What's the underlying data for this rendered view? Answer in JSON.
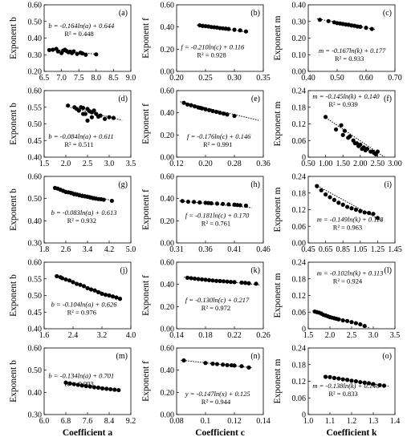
{
  "chart_data": [
    {
      "panel": "(a)",
      "type": "scatter",
      "ylabel": "Exponent b",
      "xlabel": "",
      "xlim": [
        6.5,
        9.0
      ],
      "xticks": [
        "6.5",
        "7.0",
        "7.5",
        "8.0",
        "8.5",
        "9.0"
      ],
      "ylim": [
        0.2,
        0.6
      ],
      "yticks": [
        "0.20",
        "0.30",
        "0.40",
        "0.50",
        "0.60"
      ],
      "equation": "b = -0.164ln(a) + 0.644",
      "r2": "R² = 0.448",
      "x": [
        6.65,
        6.75,
        6.85,
        6.9,
        7.0,
        7.05,
        7.1,
        7.15,
        7.2,
        7.25,
        7.3,
        7.35,
        7.45,
        7.55,
        7.6,
        7.7,
        8.0
      ],
      "y": [
        0.328,
        0.33,
        0.335,
        0.32,
        0.31,
        0.325,
        0.33,
        0.322,
        0.315,
        0.318,
        0.31,
        0.32,
        0.305,
        0.312,
        0.308,
        0.3,
        0.302
      ],
      "trend": {
        "x": [
          6.6,
          8.05
        ],
        "y": [
          0.335,
          0.302
        ]
      }
    },
    {
      "panel": "(b)",
      "type": "scatter",
      "ylabel": "Exponent f",
      "xlabel": "",
      "xlim": [
        0.2,
        0.35
      ],
      "xticks": [
        "0.20",
        "0.25",
        "0.30",
        "0.35"
      ],
      "ylim": [
        0.0,
        0.6
      ],
      "yticks": [
        "0.00",
        "0.20",
        "0.40",
        "0.60"
      ],
      "equation": "f = -0.210ln(c) + 0.116",
      "r2": "R² = 0.928",
      "x": [
        0.24,
        0.245,
        0.25,
        0.255,
        0.26,
        0.265,
        0.27,
        0.275,
        0.28,
        0.285,
        0.29,
        0.3,
        0.31,
        0.32
      ],
      "y": [
        0.415,
        0.41,
        0.408,
        0.405,
        0.4,
        0.398,
        0.395,
        0.39,
        0.388,
        0.385,
        0.382,
        0.375,
        0.37,
        0.36
      ],
      "trend": {
        "x": [
          0.235,
          0.325
        ],
        "y": [
          0.418,
          0.352
        ]
      }
    },
    {
      "panel": "(c)",
      "type": "scatter",
      "ylabel": "Exponent m",
      "xlabel": "",
      "xlim": [
        0.4,
        0.7
      ],
      "xticks": [
        "0.40",
        "0.50",
        "0.60",
        "0.70"
      ],
      "ylim": [
        0.0,
        0.4
      ],
      "yticks": [
        "0.00",
        "0.10",
        "0.20",
        "0.30",
        "0.40"
      ],
      "equation": "m = -0.167ln(k) + 0.177",
      "r2": "R² = 0.933",
      "x": [
        0.44,
        0.47,
        0.49,
        0.5,
        0.51,
        0.52,
        0.53,
        0.54,
        0.55,
        0.56,
        0.57,
        0.58,
        0.6,
        0.62
      ],
      "y": [
        0.31,
        0.302,
        0.295,
        0.29,
        0.288,
        0.285,
        0.282,
        0.28,
        0.276,
        0.274,
        0.27,
        0.268,
        0.262,
        0.255
      ],
      "trend": {
        "x": [
          0.43,
          0.63
        ],
        "y": [
          0.316,
          0.253
        ]
      }
    },
    {
      "panel": "(d)",
      "type": "scatter",
      "ylabel": "Exponent b",
      "xlabel": "",
      "xlim": [
        1.5,
        3.5
      ],
      "xticks": [
        "1.5",
        "2.0",
        "2.5",
        "3.0",
        "3.5"
      ],
      "ylim": [
        0.4,
        0.6
      ],
      "yticks": [
        "0.40",
        "0.45",
        "0.50",
        "0.55",
        "0.60"
      ],
      "equation": "b = -0.084ln(a) + 0.611",
      "r2": "R² = 0.511",
      "x": [
        2.05,
        2.2,
        2.25,
        2.3,
        2.35,
        2.4,
        2.45,
        2.5,
        2.55,
        2.6,
        2.65,
        2.7,
        2.75,
        2.8,
        2.9,
        3.0,
        3.1,
        2.4,
        2.5,
        2.6
      ],
      "y": [
        0.555,
        0.55,
        0.545,
        0.54,
        0.55,
        0.548,
        0.53,
        0.545,
        0.538,
        0.52,
        0.54,
        0.53,
        0.522,
        0.525,
        0.515,
        0.52,
        0.518,
        0.53,
        0.51,
        0.535
      ],
      "trend": {
        "x": [
          2.0,
          3.3
        ],
        "y": [
          0.553,
          0.511
        ]
      }
    },
    {
      "panel": "(e)",
      "type": "scatter",
      "ylabel": "Exponent f",
      "xlabel": "",
      "xlim": [
        0.12,
        0.36
      ],
      "xticks": [
        "0.12",
        "0.20",
        "0.28",
        "0.36"
      ],
      "ylim": [
        0.0,
        0.6
      ],
      "yticks": [
        "0.00",
        "0.20",
        "0.40",
        "0.60"
      ],
      "equation": "f = -0.176ln(c) + 0.146",
      "r2": "R² = 0.991",
      "x": [
        0.14,
        0.15,
        0.16,
        0.17,
        0.18,
        0.185,
        0.19,
        0.2,
        0.21,
        0.22,
        0.23,
        0.24,
        0.25,
        0.26,
        0.28
      ],
      "y": [
        0.49,
        0.475,
        0.468,
        0.458,
        0.448,
        0.445,
        0.44,
        0.432,
        0.424,
        0.415,
        0.408,
        0.4,
        0.392,
        0.385,
        0.372
      ],
      "trend": {
        "x": [
          0.13,
          0.35
        ],
        "y": [
          0.5,
          0.33
        ]
      }
    },
    {
      "panel": "(f)",
      "type": "scatter",
      "ylabel": "Exponent m",
      "xlabel": "",
      "xlim": [
        0.5,
        3.0
      ],
      "xticks": [
        "0.50",
        "1.00",
        "1.50",
        "2.00",
        "2.50",
        "3.00"
      ],
      "ylim": [
        0,
        0.24
      ],
      "yticks": [
        "0",
        "0.06",
        "0.12",
        "0.18",
        "0.24"
      ],
      "equation": "m = -0.145ln(k) + 0.140",
      "r2": "R² = 0.939",
      "x": [
        1.0,
        1.3,
        1.45,
        1.5,
        1.55,
        1.65,
        1.7,
        1.8,
        1.85,
        1.9,
        1.95,
        2.0,
        2.05,
        2.1,
        2.15,
        2.2,
        2.3,
        2.35,
        2.4,
        2.45,
        2.5
      ],
      "y": [
        0.145,
        0.1,
        0.115,
        0.08,
        0.095,
        0.07,
        0.075,
        0.06,
        0.05,
        0.05,
        0.04,
        0.045,
        0.03,
        0.035,
        0.025,
        0.03,
        0.02,
        0.02,
        0.015,
        0.01,
        0.02
      ],
      "trend": {
        "x": [
          0.95,
          2.7
        ],
        "y": [
          0.147,
          0.0
        ]
      }
    },
    {
      "panel": "(g)",
      "type": "scatter",
      "ylabel": "Exponent b",
      "xlabel": "",
      "xlim": [
        1.8,
        5.0
      ],
      "xticks": [
        "1.8",
        "2.6",
        "3.4",
        "4.2",
        "5.0"
      ],
      "ylim": [
        0.3,
        0.6
      ],
      "yticks": [
        "0.30",
        "0.40",
        "0.50",
        "0.60"
      ],
      "equation": "b = -0.083ln(a) + 0.613",
      "r2": "R² = 0.932",
      "x": [
        2.2,
        2.3,
        2.4,
        2.5,
        2.6,
        2.7,
        2.8,
        2.9,
        3.0,
        3.1,
        3.2,
        3.3,
        3.4,
        3.5,
        3.6,
        3.7,
        3.8,
        3.9,
        4.0,
        4.3
      ],
      "y": [
        0.548,
        0.545,
        0.54,
        0.535,
        0.53,
        0.528,
        0.525,
        0.52,
        0.518,
        0.515,
        0.512,
        0.51,
        0.508,
        0.505,
        0.502,
        0.5,
        0.498,
        0.497,
        0.495,
        0.49
      ],
      "trend": {
        "x": [
          2.15,
          4.35
        ],
        "y": [
          0.55,
          0.49
        ]
      }
    },
    {
      "panel": "(h)",
      "type": "scatter",
      "ylabel": "Exponent f",
      "xlabel": "",
      "xlim": [
        0.31,
        0.46
      ],
      "xticks": [
        "0.31",
        "0.36",
        "0.41",
        "0.46"
      ],
      "ylim": [
        0.0,
        0.6
      ],
      "yticks": [
        "0.00",
        "0.20",
        "0.40",
        "0.60"
      ],
      "equation": "f = -0.181ln(c) + 0.170",
      "r2": "R² = 0.761",
      "x": [
        0.32,
        0.33,
        0.34,
        0.35,
        0.36,
        0.365,
        0.37,
        0.38,
        0.39,
        0.4,
        0.41,
        0.415,
        0.42,
        0.43
      ],
      "y": [
        0.378,
        0.372,
        0.37,
        0.365,
        0.362,
        0.36,
        0.358,
        0.355,
        0.352,
        0.348,
        0.345,
        0.342,
        0.34,
        0.336
      ],
      "trend": {
        "x": [
          0.315,
          0.44
        ],
        "y": [
          0.379,
          0.318
        ]
      }
    },
    {
      "panel": "(i)",
      "type": "scatter",
      "ylabel": "Exponent m",
      "xlabel": "",
      "xlim": [
        0.45,
        1.45
      ],
      "xticks": [
        "0.45",
        "0.65",
        "0.85",
        "1.05",
        "1.25",
        "1.45"
      ],
      "ylim": [
        0.0,
        0.24
      ],
      "yticks": [
        "0.00",
        "0.06",
        "0.12",
        "0.18",
        "0.24"
      ],
      "equation": "m = -0.149ln(k) + 0.118",
      "r2": "R² = 0.963",
      "x": [
        0.55,
        0.6,
        0.65,
        0.7,
        0.75,
        0.8,
        0.85,
        0.9,
        0.95,
        1.0,
        1.05,
        1.1,
        1.15,
        1.2,
        1.25
      ],
      "y": [
        0.205,
        0.19,
        0.175,
        0.165,
        0.155,
        0.145,
        0.138,
        0.13,
        0.125,
        0.12,
        0.115,
        0.11,
        0.108,
        0.105,
        0.09
      ],
      "trend": {
        "x": [
          0.53,
          1.3
        ],
        "y": [
          0.21,
          0.08
        ]
      }
    },
    {
      "panel": "(j)",
      "type": "scatter",
      "ylabel": "Exponent b",
      "xlabel": "",
      "xlim": [
        1.6,
        4.0
      ],
      "xticks": [
        "1.6",
        "2.4",
        "3.2",
        "4.0"
      ],
      "ylim": [
        0.4,
        0.6
      ],
      "yticks": [
        "0.40",
        "0.45",
        "0.50",
        "0.55",
        "0.60"
      ],
      "equation": "b = -0.104ln(a) + 0.626",
      "r2": "R² = 0.976",
      "x": [
        1.95,
        2.05,
        2.1,
        2.2,
        2.3,
        2.4,
        2.5,
        2.6,
        2.7,
        2.8,
        2.9,
        3.0,
        3.1,
        3.2,
        3.3,
        3.4,
        3.5,
        3.6,
        3.7
      ],
      "y": [
        0.558,
        0.555,
        0.552,
        0.548,
        0.545,
        0.54,
        0.535,
        0.532,
        0.528,
        0.522,
        0.518,
        0.515,
        0.51,
        0.505,
        0.502,
        0.5,
        0.497,
        0.494,
        0.49
      ],
      "trend": {
        "x": [
          1.9,
          3.75
        ],
        "y": [
          0.559,
          0.489
        ]
      }
    },
    {
      "panel": "(k)",
      "type": "scatter",
      "ylabel": "Exponent f",
      "xlabel": "",
      "xlim": [
        0.14,
        0.26
      ],
      "xticks": [
        "0.14",
        "0.18",
        "0.22",
        "0.26"
      ],
      "ylim": [
        0.0,
        0.6
      ],
      "yticks": [
        "0.00",
        "0.20",
        "0.40",
        "0.60"
      ],
      "equation": "f = -0.130ln(c) + 0.217",
      "r2": "R² = 0.972",
      "x": [
        0.155,
        0.16,
        0.165,
        0.17,
        0.175,
        0.18,
        0.185,
        0.19,
        0.195,
        0.2,
        0.205,
        0.21,
        0.215,
        0.22,
        0.23,
        0.235,
        0.24,
        0.25
      ],
      "y": [
        0.46,
        0.456,
        0.452,
        0.448,
        0.445,
        0.442,
        0.438,
        0.435,
        0.432,
        0.43,
        0.428,
        0.425,
        0.422,
        0.42,
        0.416,
        0.414,
        0.41,
        0.406
      ],
      "trend": {
        "x": [
          0.15,
          0.255
        ],
        "y": [
          0.464,
          0.395
        ]
      }
    },
    {
      "panel": "(l)",
      "type": "scatter",
      "ylabel": "Exponent m",
      "xlabel": "",
      "xlim": [
        1.5,
        3.5
      ],
      "xticks": [
        "1.5",
        "2.0",
        "2.5",
        "3.0",
        "3.5"
      ],
      "ylim": [
        0,
        0.24
      ],
      "yticks": [
        "0",
        "0.06",
        "0.12",
        "0.18",
        "0.24"
      ],
      "equation": "m = -0.102ln(k) + 0.113",
      "r2": "R² = 0.924",
      "x": [
        1.65,
        1.7,
        1.75,
        1.8,
        1.85,
        1.9,
        1.95,
        2.0,
        2.05,
        2.1,
        2.15,
        2.2,
        2.3,
        2.4,
        2.5,
        2.6,
        2.7,
        2.8
      ],
      "y": [
        0.062,
        0.06,
        0.058,
        0.055,
        0.05,
        0.048,
        0.045,
        0.042,
        0.04,
        0.038,
        0.036,
        0.034,
        0.03,
        0.028,
        0.024,
        0.02,
        0.016,
        0.01
      ],
      "trend": {
        "x": [
          1.6,
          2.9
        ],
        "y": [
          0.065,
          0.004
        ]
      }
    },
    {
      "panel": "(m)",
      "type": "scatter",
      "ylabel": "Exponent b",
      "xlabel": "Coefficient a",
      "xlim": [
        6.0,
        9.2
      ],
      "xticks": [
        "6.0",
        "6.8",
        "7.6",
        "8.4",
        "9.2"
      ],
      "ylim": [
        0.3,
        0.6
      ],
      "yticks": [
        "0.30",
        "0.40",
        "0.50",
        "0.60"
      ],
      "equation": "b = -0.134ln(a) + 0.701",
      "r2": "R² = 0.993",
      "x": [
        6.8,
        6.95,
        7.1,
        7.25,
        7.4,
        7.55,
        7.7,
        7.85,
        8.0,
        8.15,
        8.3,
        8.45,
        8.6,
        8.75
      ],
      "y": [
        0.444,
        0.44,
        0.437,
        0.434,
        0.431,
        0.428,
        0.426,
        0.423,
        0.421,
        0.418,
        0.416,
        0.414,
        0.412,
        0.41
      ],
      "trend": {
        "x": [
          6.75,
          8.8
        ],
        "y": [
          0.445,
          0.409
        ]
      }
    },
    {
      "panel": "(n)",
      "type": "scatter",
      "ylabel": "Exponent f",
      "xlabel": "Coefficient c",
      "xlim": [
        0.08,
        0.14
      ],
      "xticks": [
        "0.08",
        "0.1",
        "0.12",
        "0.14"
      ],
      "ylim": [
        0.0,
        0.6
      ],
      "yticks": [
        "0.00",
        "0.20",
        "0.40",
        "0.60"
      ],
      "equation": "y = -0.147ln(x) + 0.125",
      "r2": "R² = 0.944",
      "x": [
        0.085,
        0.1,
        0.105,
        0.108,
        0.112,
        0.115,
        0.118,
        0.12,
        0.125,
        0.13
      ],
      "y": [
        0.488,
        0.465,
        0.458,
        0.455,
        0.45,
        0.446,
        0.444,
        0.442,
        0.436,
        0.424
      ],
      "trend": {
        "x": [
          0.083,
          0.132
        ],
        "y": [
          0.49,
          0.422
        ]
      }
    },
    {
      "panel": "(o)",
      "type": "scatter",
      "ylabel": "Exponent m",
      "xlabel": "Coefficient k",
      "xlim": [
        1.0,
        1.4
      ],
      "xticks": [
        "1.0",
        "1.1",
        "1.2",
        "1.3",
        "1.4"
      ],
      "ylim": [
        0,
        0.24
      ],
      "yticks": [
        "0",
        "0.06",
        "0.12",
        "0.18",
        "0.24"
      ],
      "equation": "m = -0.138ln(k) + 0.146",
      "r2": "R² = 0.833",
      "x": [
        1.08,
        1.1,
        1.12,
        1.14,
        1.16,
        1.18,
        1.2,
        1.22,
        1.24,
        1.26,
        1.28,
        1.3,
        1.33,
        1.35
      ],
      "y": [
        0.136,
        0.135,
        0.132,
        0.13,
        0.127,
        0.125,
        0.122,
        0.12,
        0.117,
        0.115,
        0.113,
        0.11,
        0.106,
        0.104
      ],
      "trend": {
        "x": [
          1.07,
          1.37
        ],
        "y": [
          0.139,
          0.102
        ]
      }
    }
  ]
}
